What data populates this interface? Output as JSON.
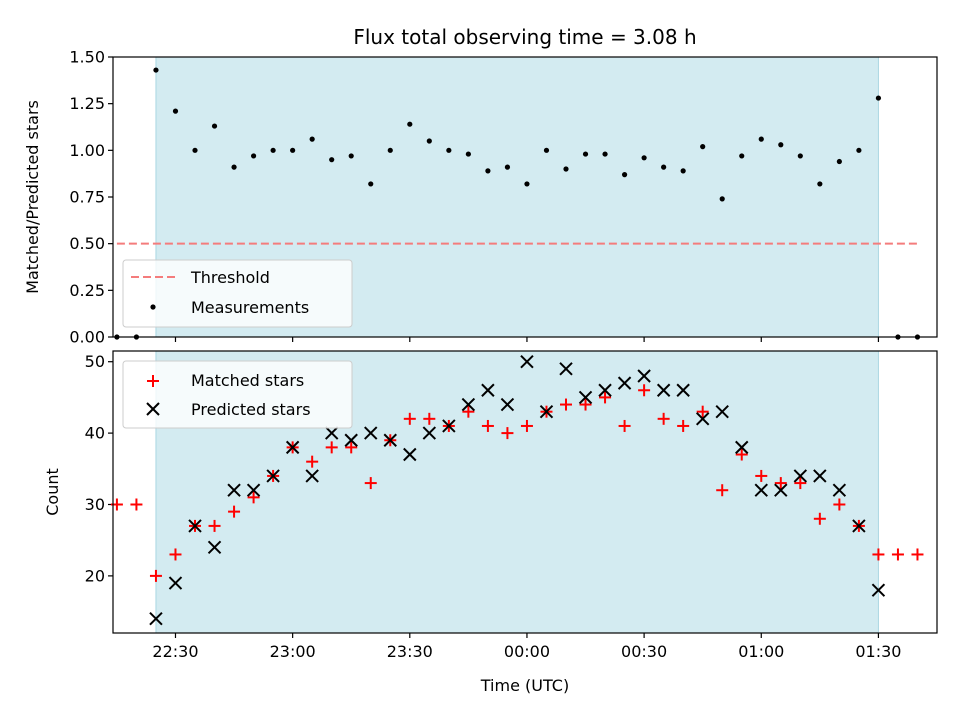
{
  "chart_data": [
    {
      "type": "scatter",
      "title": "Flux total observing time = 3.08 h",
      "xlabel": "",
      "ylabel": "Matched/Predicted stars",
      "ylim": [
        0,
        1.5
      ],
      "yticks": [
        "0.00",
        "0.25",
        "0.50",
        "0.75",
        "1.00",
        "1.25",
        "1.50"
      ],
      "xlim": [
        "22:14",
        "01:45"
      ],
      "highlight_span": [
        "22:25",
        "01:30"
      ],
      "highlight_color": "#d3ebf1",
      "threshold": {
        "name": "Threshold",
        "value": 0.5,
        "x_range": [
          "22:15",
          "01:40"
        ],
        "color": "#f47c7c"
      },
      "series": [
        {
          "name": "Measurements",
          "marker": "dot",
          "color": "#000000",
          "x": [
            "22:15",
            "22:20",
            "22:25",
            "22:30",
            "22:35",
            "22:40",
            "22:45",
            "22:50",
            "22:55",
            "23:00",
            "23:05",
            "23:10",
            "23:15",
            "23:20",
            "23:25",
            "23:30",
            "23:35",
            "23:40",
            "23:45",
            "23:50",
            "23:55",
            "00:00",
            "00:05",
            "00:10",
            "00:15",
            "00:20",
            "00:25",
            "00:30",
            "00:35",
            "00:40",
            "00:45",
            "00:50",
            "00:55",
            "01:00",
            "01:05",
            "01:10",
            "01:15",
            "01:20",
            "01:25",
            "01:30",
            "01:35",
            "01:40"
          ],
          "values": [
            0.0,
            0.0,
            1.43,
            1.21,
            1.0,
            1.13,
            0.91,
            0.97,
            1.0,
            1.0,
            1.06,
            0.95,
            0.97,
            0.82,
            1.0,
            1.14,
            1.05,
            1.0,
            0.98,
            0.89,
            0.91,
            0.82,
            1.0,
            0.9,
            0.98,
            0.98,
            0.87,
            0.96,
            0.91,
            0.89,
            1.02,
            0.74,
            0.97,
            1.06,
            1.03,
            0.97,
            0.82,
            0.94,
            1.0,
            1.28,
            0.0,
            0.0
          ]
        }
      ],
      "legend": {
        "placement": "lower-left",
        "entries": [
          "Threshold",
          "Measurements"
        ]
      }
    },
    {
      "type": "scatter",
      "title": "",
      "xlabel": "Time (UTC)",
      "ylabel": "Count",
      "ylim": [
        12,
        51.5
      ],
      "yticks": [
        "20",
        "30",
        "40",
        "50"
      ],
      "xlim": [
        "22:14",
        "01:45"
      ],
      "xticks": [
        "22:30",
        "23:00",
        "23:30",
        "00:00",
        "00:30",
        "01:00",
        "01:30"
      ],
      "highlight_span": [
        "22:25",
        "01:30"
      ],
      "highlight_color": "#d3ebf1",
      "series": [
        {
          "name": "Matched stars",
          "marker": "plus",
          "color": "#ff0000",
          "x": [
            "22:15",
            "22:20",
            "22:25",
            "22:30",
            "22:35",
            "22:40",
            "22:45",
            "22:50",
            "22:55",
            "23:00",
            "23:05",
            "23:10",
            "23:15",
            "23:20",
            "23:25",
            "23:30",
            "23:35",
            "23:40",
            "23:45",
            "23:50",
            "23:55",
            "00:00",
            "00:05",
            "00:10",
            "00:15",
            "00:20",
            "00:25",
            "00:30",
            "00:35",
            "00:40",
            "00:45",
            "00:50",
            "00:55",
            "01:00",
            "01:05",
            "01:10",
            "01:15",
            "01:20",
            "01:25",
            "01:30",
            "01:35",
            "01:40"
          ],
          "values": [
            30,
            30,
            20,
            23,
            27,
            27,
            29,
            31,
            34,
            38,
            36,
            38,
            38,
            33,
            39,
            42,
            42,
            41,
            43,
            41,
            40,
            41,
            43,
            44,
            44,
            45,
            41,
            46,
            42,
            41,
            43,
            32,
            37,
            34,
            33,
            33,
            28,
            30,
            27,
            23,
            23,
            23
          ]
        },
        {
          "name": "Predicted stars",
          "marker": "x",
          "color": "#000000",
          "x": [
            "22:25",
            "22:30",
            "22:35",
            "22:40",
            "22:45",
            "22:50",
            "22:55",
            "23:00",
            "23:05",
            "23:10",
            "23:15",
            "23:20",
            "23:25",
            "23:30",
            "23:35",
            "23:40",
            "23:45",
            "23:50",
            "23:55",
            "00:00",
            "00:05",
            "00:10",
            "00:15",
            "00:20",
            "00:25",
            "00:30",
            "00:35",
            "00:40",
            "00:45",
            "00:50",
            "00:55",
            "01:00",
            "01:05",
            "01:10",
            "01:15",
            "01:20",
            "01:25",
            "01:30"
          ],
          "values": [
            14,
            19,
            27,
            24,
            32,
            32,
            34,
            38,
            34,
            40,
            39,
            40,
            39,
            37,
            40,
            41,
            44,
            46,
            44,
            50,
            43,
            49,
            45,
            46,
            47,
            48,
            46,
            46,
            42,
            43,
            38,
            32,
            32,
            34,
            34,
            32,
            27,
            18
          ]
        }
      ],
      "legend": {
        "placement": "upper-left",
        "entries": [
          "Matched stars",
          "Predicted stars"
        ]
      }
    }
  ]
}
